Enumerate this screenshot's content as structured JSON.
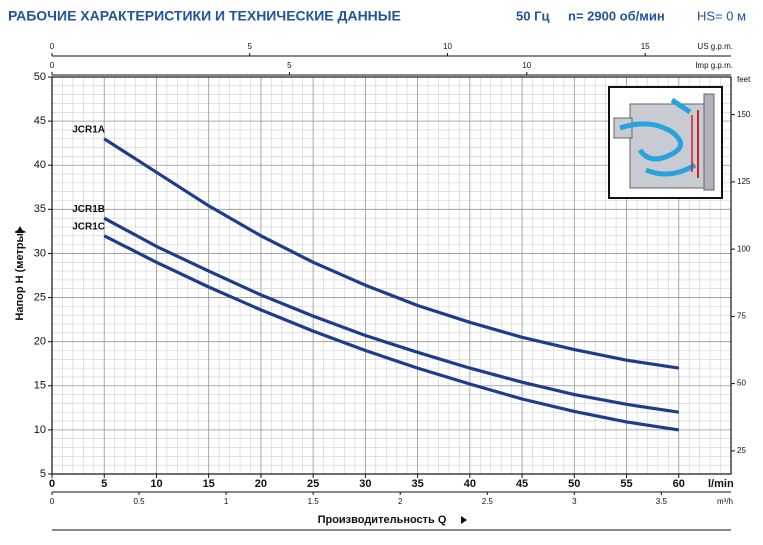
{
  "chart_data": {
    "type": "line",
    "header": {
      "title": "РАБОЧИЕ ХАРАКТЕРИСТИКИ И ТЕХНИЧЕСКИЕ ДАННЫЕ",
      "frequency": "50 Гц",
      "speed": "n= 2900 об/мин",
      "suction": "HS= 0 м"
    },
    "y_label": "Напор H (метры)",
    "x_label": "Производительность Q",
    "x_unit": "l/min",
    "x": [
      5,
      10,
      15,
      20,
      25,
      30,
      35,
      40,
      45,
      50,
      55,
      60
    ],
    "series": [
      {
        "name": "JCR1A",
        "color": "#1f3c8c",
        "values": [
          43,
          39.2,
          35.4,
          32.0,
          29.0,
          26.4,
          24.1,
          22.2,
          20.5,
          19.1,
          17.9,
          17
        ]
      },
      {
        "name": "JCR1B",
        "color": "#1f3c8c",
        "values": [
          34,
          30.8,
          28.0,
          25.3,
          22.9,
          20.7,
          18.8,
          17.0,
          15.4,
          14.0,
          12.9,
          12
        ]
      },
      {
        "name": "JCR1C",
        "color": "#1f3c8c",
        "values": [
          32,
          29.0,
          26.2,
          23.6,
          21.2,
          19.0,
          17.0,
          15.2,
          13.5,
          12.1,
          10.9,
          10
        ]
      }
    ],
    "xlim": [
      0,
      65
    ],
    "xticks": [
      0,
      5,
      10,
      15,
      20,
      25,
      30,
      35,
      40,
      45,
      50,
      55,
      60
    ],
    "ylim": [
      5,
      50
    ],
    "yticks": [
      5,
      10,
      15,
      20,
      25,
      30,
      35,
      40,
      45,
      50
    ],
    "grid": true,
    "top_axes": [
      {
        "label": "US g.p.m.",
        "lim": [
          0,
          17.17
        ],
        "ticks": [
          0,
          5,
          10,
          15
        ]
      },
      {
        "label": "Imp g.p.m.",
        "lim": [
          0,
          14.3
        ],
        "ticks": [
          0,
          5,
          10
        ]
      }
    ],
    "bottom_axis": {
      "label": "m³/h",
      "lim": [
        0,
        3.9
      ],
      "ticks": [
        0,
        0.5,
        1,
        1.5,
        2,
        2.5,
        3,
        3.5
      ]
    },
    "right_axis": {
      "label": "feet",
      "lim": [
        16.4,
        164.0
      ],
      "ticks": [
        25,
        50,
        75,
        100,
        125,
        150
      ]
    }
  }
}
